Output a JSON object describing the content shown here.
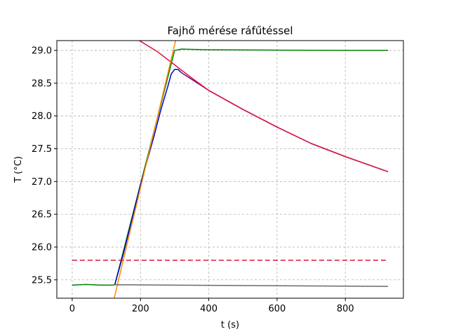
{
  "chart_data": {
    "type": "line",
    "title": "Fajhő mérése ráfűtéssel",
    "xlabel": "t (s)",
    "ylabel": "T (°C)",
    "xlim": [
      -45,
      970
    ],
    "ylim": [
      25.22,
      29.15
    ],
    "xticks": [
      0,
      200,
      400,
      600,
      800
    ],
    "xtick_labels": [
      "0",
      "200",
      "400",
      "600",
      "800"
    ],
    "yticks": [
      25.5,
      26.0,
      26.5,
      27.0,
      27.5,
      28.0,
      28.5,
      29.0
    ],
    "ytick_labels": [
      "25.5",
      "26.0",
      "26.5",
      "27.0",
      "27.5",
      "28.0",
      "28.5",
      "29.0"
    ],
    "grid": true,
    "series": [
      {
        "color": "#008000",
        "width": 1.5,
        "dash": "",
        "x": [
          0,
          40,
          80,
          120,
          125,
          300,
          320,
          400,
          600,
          800,
          925
        ],
        "y": [
          25.42,
          25.43,
          25.42,
          25.42,
          25.43,
          29.0,
          29.02,
          29.01,
          29.005,
          29.0,
          29.0
        ]
      },
      {
        "color": "#0000cc",
        "width": 1.5,
        "dash": "",
        "x": [
          125,
          150,
          200,
          240,
          260,
          280,
          290,
          300,
          310,
          320
        ],
        "y": [
          25.43,
          25.9,
          26.95,
          27.7,
          28.1,
          28.45,
          28.64,
          28.71,
          28.71,
          28.66
        ]
      },
      {
        "color": "#800080",
        "width": 1.5,
        "dash": "",
        "x": [
          320,
          400,
          500,
          600,
          700,
          800,
          925
        ],
        "y": [
          28.66,
          28.39,
          28.1,
          27.83,
          27.58,
          27.38,
          27.15
        ]
      },
      {
        "color": "#dc143c",
        "width": 1.5,
        "dash": "",
        "x": [
          175,
          200,
          250,
          300,
          350,
          400,
          500,
          600,
          700,
          800,
          925
        ],
        "y": [
          29.22,
          29.14,
          28.98,
          28.78,
          28.58,
          28.39,
          28.1,
          27.83,
          27.58,
          27.38,
          27.15
        ]
      },
      {
        "color": "#ff8c00",
        "width": 1.5,
        "dash": "",
        "x": [
          123,
          303
        ],
        "y": [
          25.22,
          29.15
        ]
      },
      {
        "color": "#dc143c",
        "width": 1.5,
        "dash": "7,4",
        "x": [
          0,
          925
        ],
        "y": [
          25.8,
          25.8
        ]
      },
      {
        "color": "#696969",
        "width": 1.5,
        "dash": "",
        "x": [
          125,
          925
        ],
        "y": [
          25.425,
          25.4
        ]
      }
    ]
  }
}
